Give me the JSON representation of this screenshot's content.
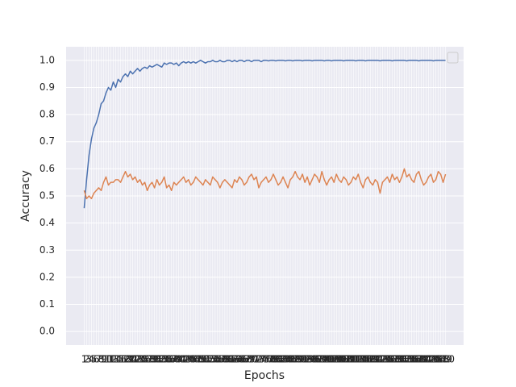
{
  "chart_data": {
    "type": "line",
    "x_label": "Epochs",
    "y_label": "Accuracy",
    "x": [
      1,
      2,
      3,
      4,
      5,
      6,
      7,
      8,
      9,
      10,
      11,
      12,
      13,
      14,
      15,
      16,
      17,
      18,
      19,
      20,
      21,
      22,
      23,
      24,
      25,
      26,
      27,
      28,
      29,
      30,
      31,
      32,
      33,
      34,
      35,
      36,
      37,
      38,
      39,
      40,
      41,
      42,
      43,
      44,
      45,
      46,
      47,
      48,
      49,
      50,
      51,
      52,
      53,
      54,
      55,
      56,
      57,
      58,
      59,
      60,
      61,
      62,
      63,
      64,
      65,
      66,
      67,
      68,
      69,
      70,
      71,
      72,
      73,
      74,
      75,
      76,
      77,
      78,
      79,
      80,
      81,
      82,
      83,
      84,
      85,
      86,
      87,
      88,
      89,
      90,
      91,
      92,
      93,
      94,
      95,
      96,
      97,
      98,
      99,
      100,
      101,
      102,
      103,
      104,
      105,
      106,
      107,
      108,
      109,
      110,
      111,
      112,
      113,
      114,
      115,
      116,
      117,
      118,
      119,
      120,
      121,
      122,
      123,
      124,
      125,
      126,
      127,
      128,
      129,
      130,
      131,
      132,
      133,
      134,
      135,
      136,
      137,
      138,
      139,
      140,
      141,
      142,
      143,
      144,
      145,
      146,
      147,
      148,
      149,
      150
    ],
    "series": [
      {
        "color": "#4c72b0",
        "values": [
          0.455,
          0.56,
          0.65,
          0.71,
          0.75,
          0.77,
          0.8,
          0.84,
          0.85,
          0.88,
          0.9,
          0.89,
          0.92,
          0.9,
          0.93,
          0.92,
          0.94,
          0.95,
          0.94,
          0.96,
          0.95,
          0.96,
          0.97,
          0.96,
          0.97,
          0.975,
          0.97,
          0.98,
          0.975,
          0.98,
          0.985,
          0.98,
          0.975,
          0.99,
          0.985,
          0.99,
          0.99,
          0.985,
          0.99,
          0.98,
          0.99,
          0.995,
          0.99,
          0.995,
          0.99,
          0.995,
          0.99,
          0.995,
          1.0,
          0.995,
          0.99,
          0.995,
          0.995,
          1.0,
          0.995,
          0.995,
          1.0,
          0.995,
          0.995,
          1.0,
          1.0,
          0.995,
          1.0,
          0.995,
          1.0,
          1.0,
          0.995,
          1.0,
          1.0,
          0.995,
          1.0,
          1.0,
          1.0,
          0.995,
          1.0,
          1.0,
          0.998,
          1.0,
          1.0,
          0.998,
          1.0,
          1.0,
          1.0,
          0.998,
          1.0,
          1.0,
          0.998,
          1.0,
          1.0,
          1.0,
          0.998,
          1.0,
          1.0,
          1.0,
          0.998,
          1.0,
          1.0,
          1.0,
          1.0,
          0.998,
          1.0,
          1.0,
          0.998,
          1.0,
          1.0,
          1.0,
          1.0,
          0.998,
          1.0,
          1.0,
          1.0,
          1.0,
          0.998,
          1.0,
          1.0,
          1.0,
          0.998,
          1.0,
          1.0,
          1.0,
          1.0,
          1.0,
          0.998,
          1.0,
          1.0,
          1.0,
          1.0,
          0.998,
          1.0,
          1.0,
          1.0,
          1.0,
          1.0,
          0.998,
          1.0,
          1.0,
          1.0,
          1.0,
          0.998,
          1.0,
          1.0,
          1.0,
          1.0,
          1.0,
          0.998,
          1.0,
          1.0,
          1.0,
          1.0,
          1.0
        ]
      },
      {
        "color": "#dd8452",
        "values": [
          0.52,
          0.49,
          0.5,
          0.49,
          0.51,
          0.52,
          0.53,
          0.52,
          0.55,
          0.57,
          0.54,
          0.55,
          0.55,
          0.56,
          0.56,
          0.55,
          0.57,
          0.59,
          0.57,
          0.58,
          0.56,
          0.57,
          0.55,
          0.56,
          0.54,
          0.55,
          0.52,
          0.54,
          0.55,
          0.53,
          0.56,
          0.54,
          0.55,
          0.57,
          0.53,
          0.54,
          0.52,
          0.55,
          0.54,
          0.55,
          0.56,
          0.57,
          0.55,
          0.56,
          0.54,
          0.55,
          0.57,
          0.56,
          0.55,
          0.54,
          0.56,
          0.55,
          0.54,
          0.57,
          0.56,
          0.55,
          0.53,
          0.55,
          0.56,
          0.55,
          0.54,
          0.53,
          0.56,
          0.55,
          0.57,
          0.56,
          0.54,
          0.55,
          0.57,
          0.58,
          0.56,
          0.57,
          0.53,
          0.55,
          0.56,
          0.57,
          0.55,
          0.56,
          0.58,
          0.56,
          0.54,
          0.55,
          0.57,
          0.55,
          0.53,
          0.56,
          0.57,
          0.59,
          0.57,
          0.56,
          0.58,
          0.55,
          0.57,
          0.54,
          0.56,
          0.58,
          0.57,
          0.55,
          0.59,
          0.56,
          0.54,
          0.56,
          0.57,
          0.55,
          0.58,
          0.56,
          0.55,
          0.57,
          0.56,
          0.54,
          0.55,
          0.57,
          0.56,
          0.58,
          0.55,
          0.53,
          0.56,
          0.57,
          0.55,
          0.54,
          0.56,
          0.55,
          0.51,
          0.55,
          0.56,
          0.57,
          0.55,
          0.58,
          0.56,
          0.57,
          0.55,
          0.57,
          0.6,
          0.57,
          0.58,
          0.56,
          0.55,
          0.58,
          0.59,
          0.56,
          0.54,
          0.55,
          0.57,
          0.58,
          0.55,
          0.56,
          0.59,
          0.58,
          0.55,
          0.58
        ]
      }
    ],
    "xlim": [
      -6.45,
      157.45
    ],
    "xticks": [
      1,
      2,
      3,
      4,
      5,
      6,
      7,
      8,
      9,
      10,
      11,
      12,
      13,
      14,
      15,
      16,
      17,
      18,
      19,
      20,
      21,
      22,
      23,
      24,
      25,
      26,
      27,
      28,
      29,
      30,
      31,
      32,
      33,
      34,
      35,
      36,
      37,
      38,
      39,
      40,
      41,
      42,
      43,
      44,
      45,
      46,
      47,
      48,
      49,
      50,
      51,
      52,
      53,
      54,
      55,
      56,
      57,
      58,
      59,
      60,
      61,
      62,
      63,
      64,
      65,
      66,
      67,
      68,
      69,
      70,
      71,
      72,
      73,
      74,
      75,
      76,
      77,
      78,
      79,
      80,
      81,
      82,
      83,
      84,
      85,
      86,
      87,
      88,
      89,
      90,
      91,
      92,
      93,
      94,
      95,
      96,
      97,
      98,
      99,
      100,
      101,
      102,
      103,
      104,
      105,
      106,
      107,
      108,
      109,
      110,
      111,
      112,
      113,
      114,
      115,
      116,
      117,
      118,
      119,
      120,
      121,
      122,
      123,
      124,
      125,
      126,
      127,
      128,
      129,
      130,
      131,
      132,
      133,
      134,
      135,
      136,
      137,
      138,
      139,
      140,
      141,
      142,
      143,
      144,
      145,
      146,
      147,
      148,
      149,
      150
    ],
    "ylim": [
      -0.05,
      1.05
    ],
    "yticks": [
      {
        "value": 0,
        "label": "0.0"
      },
      0.1,
      0.2,
      0.3,
      0.4,
      0.5,
      0.6,
      0.7,
      0.8,
      0.9,
      {
        "value": 1,
        "label": "1.0"
      }
    ],
    "grid": true
  }
}
